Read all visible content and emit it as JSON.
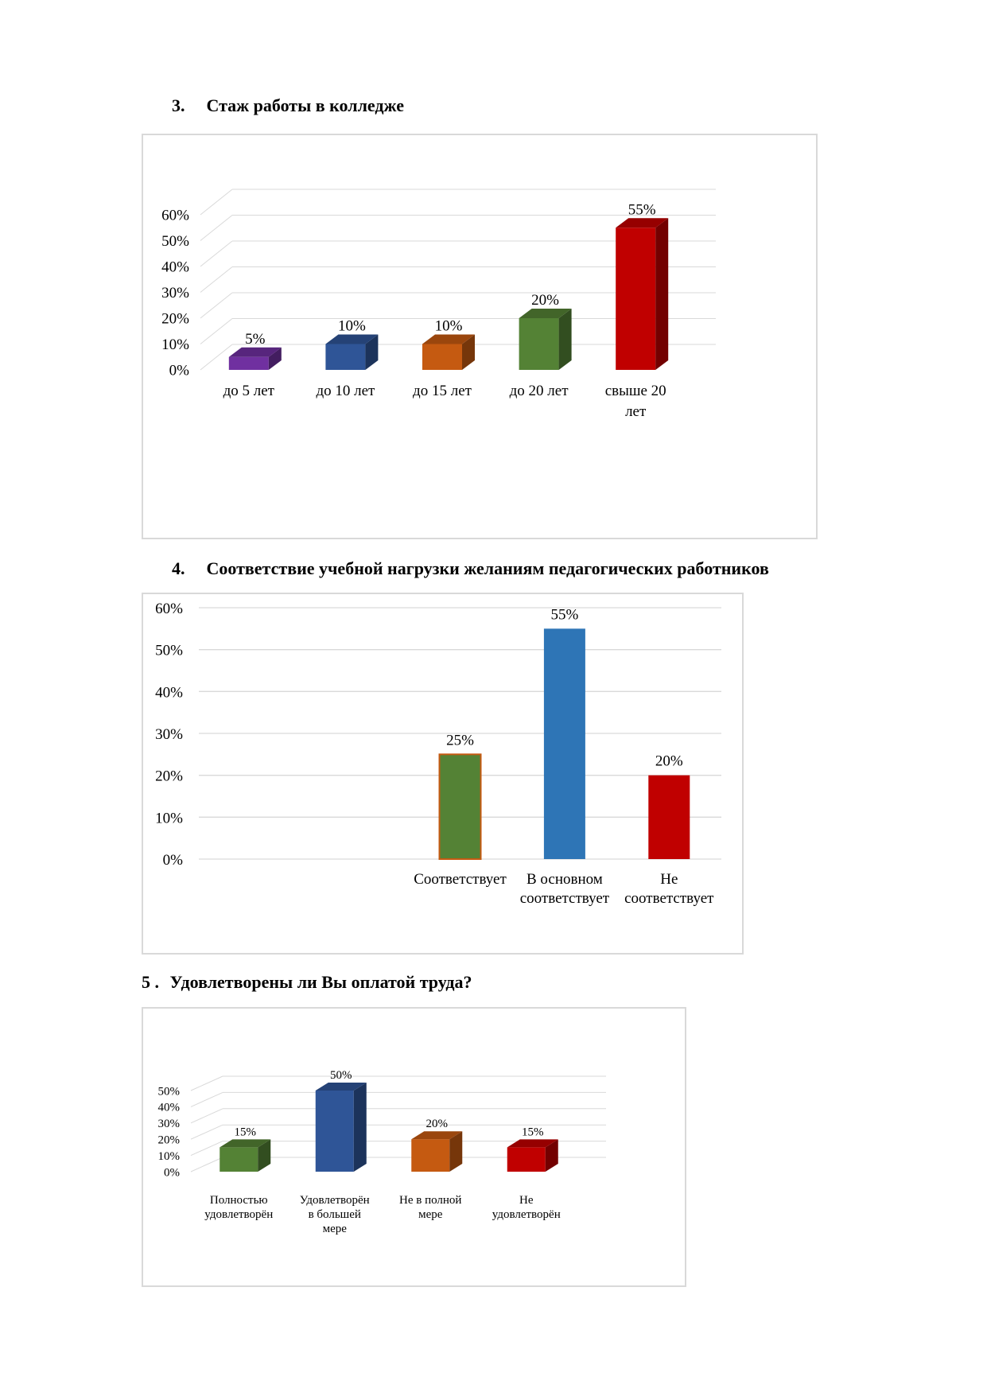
{
  "sections": [
    {
      "number": "3.",
      "title": "Стаж работы в колледже"
    },
    {
      "number": "4.",
      "title": "Соответствие учебной нагрузки желаниям педагогических работников"
    },
    {
      "number": "5 .",
      "title": "Удовлетворены ли Вы оплатой труда?"
    }
  ],
  "chart_data": [
    {
      "type": "bar",
      "style": "3d",
      "categories": [
        "до 5 лет",
        "до 10 лет",
        "до 15 лет",
        "до 20 лет",
        "свыше 20 лет"
      ],
      "values": [
        5,
        10,
        10,
        20,
        55
      ],
      "value_labels": [
        "5%",
        "10%",
        "10%",
        "20%",
        "55%"
      ],
      "colors": [
        "#7030a0",
        "#2f5597",
        "#c55a11",
        "#548235",
        "#c00000"
      ],
      "ylim": [
        0,
        60
      ],
      "yticks": [
        "0%",
        "10%",
        "20%",
        "30%",
        "40%",
        "50%",
        "60%"
      ],
      "grid": true
    },
    {
      "type": "bar",
      "style": "flat",
      "categories": [
        "",
        "",
        "Соответствует",
        "В основном соответствует",
        "Не соответствует"
      ],
      "values": [
        0,
        0,
        25,
        55,
        20
      ],
      "value_labels": [
        "",
        "",
        "25%",
        "55%",
        "20%"
      ],
      "colors": [
        "#548235",
        "#548235",
        "#548235",
        "#2e75b6",
        "#c00000"
      ],
      "ylim": [
        0,
        60
      ],
      "yticks": [
        "0%",
        "10%",
        "20%",
        "30%",
        "40%",
        "50%",
        "60%"
      ],
      "grid": true
    },
    {
      "type": "bar",
      "style": "3d",
      "categories": [
        "Полностью удовлетворён",
        "Удовлетворён в большей мере",
        "Не в полной мере",
        "Не удовлетворён"
      ],
      "values": [
        15,
        50,
        20,
        15
      ],
      "value_labels": [
        "15%",
        "50%",
        "20%",
        "15%"
      ],
      "colors": [
        "#548235",
        "#2f5597",
        "#c55a11",
        "#c00000"
      ],
      "ylim": [
        0,
        50
      ],
      "yticks": [
        "0%",
        "10%",
        "20%",
        "30%",
        "40%",
        "50%"
      ],
      "grid": true
    }
  ]
}
